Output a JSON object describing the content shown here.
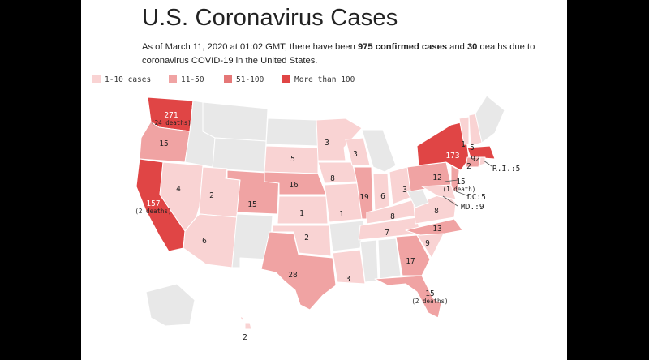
{
  "title": "U.S. Coronavirus Cases",
  "subtitle": {
    "prefix": "As of March 11, 2020 at 01:02 GMT, there have been ",
    "cases_bold": "975 confirmed cases",
    "middle": " and ",
    "deaths_bold": "30",
    "suffix": " deaths due to coronavirus COVID-19 in the United States."
  },
  "legend": [
    {
      "label": "1-10 cases",
      "color": "#f9d3d3"
    },
    {
      "label": "11-50",
      "color": "#f0a3a3"
    },
    {
      "label": "51-100",
      "color": "#e57777"
    },
    {
      "label": "More than 100",
      "color": "#e04545"
    }
  ],
  "colors": {
    "none": "#e8e8e8",
    "border": "#ffffff"
  },
  "state_labels": {
    "wa": "271",
    "wa_d": "(24 deaths)",
    "or": "15",
    "ca": "157",
    "ca_d": "(2 deaths)",
    "nv": "4",
    "ut": "2",
    "az": "6",
    "co": "15",
    "sd": "5",
    "mn": "3",
    "ne": "16",
    "ks": "1",
    "ok": "2",
    "tx": "28",
    "wi": "3",
    "ia": "8",
    "il": "19",
    "mo": "1",
    "la": "3",
    "in": "6",
    "ky": "8",
    "tn": "7",
    "ga": "17",
    "fl": "15",
    "fl_d": "(2 deaths)",
    "oh": "3",
    "pa": "12",
    "va": "8",
    "nc": "13",
    "sc": "9",
    "ny": "173",
    "vt": "1",
    "nh": "5",
    "ma": "92",
    "ct": "2",
    "nj": "15",
    "nj_d": "(1 death)",
    "ri": "R.I.:5",
    "dc": "DC:5",
    "md": "MD.:9",
    "hi": "2"
  }
}
